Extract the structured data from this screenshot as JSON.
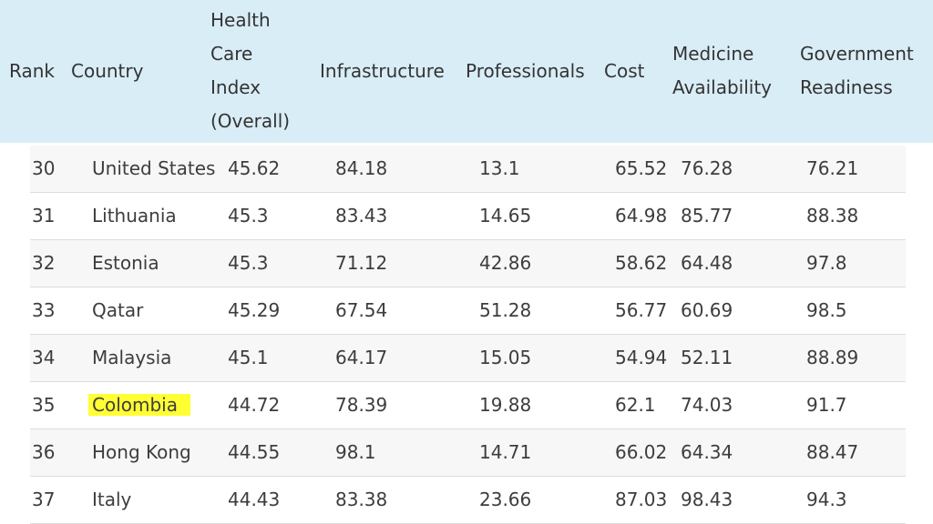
{
  "headers": {
    "rank": "Rank",
    "country": "Country",
    "index": "Health\nCare\nIndex\n(Overall)",
    "infrastructure": "Infrastructure",
    "professionals": "Professionals",
    "cost": "Cost",
    "medicine": "Medicine\nAvailability",
    "government": "Government\nReadiness"
  },
  "highlight_color": "#ffff33",
  "rows": [
    {
      "rank": "30",
      "country": "United States",
      "index": "45.62",
      "infrastructure": "84.18",
      "professionals": "13.1",
      "cost": "65.52",
      "medicine": "76.28",
      "government": "76.21"
    },
    {
      "rank": "31",
      "country": "Lithuania",
      "index": "45.3",
      "infrastructure": "83.43",
      "professionals": "14.65",
      "cost": "64.98",
      "medicine": "85.77",
      "government": "88.38"
    },
    {
      "rank": "32",
      "country": "Estonia",
      "index": "45.3",
      "infrastructure": "71.12",
      "professionals": "42.86",
      "cost": "58.62",
      "medicine": "64.48",
      "government": "97.8"
    },
    {
      "rank": "33",
      "country": "Qatar",
      "index": "45.29",
      "infrastructure": "67.54",
      "professionals": "51.28",
      "cost": "56.77",
      "medicine": "60.69",
      "government": "98.5"
    },
    {
      "rank": "34",
      "country": "Malaysia",
      "index": "45.1",
      "infrastructure": "64.17",
      "professionals": "15.05",
      "cost": "54.94",
      "medicine": "52.11",
      "government": "88.89"
    },
    {
      "rank": "35",
      "country": "Colombia",
      "index": "44.72",
      "infrastructure": "78.39",
      "professionals": "19.88",
      "cost": "62.1",
      "medicine": "74.03",
      "government": "91.7",
      "highlighted": true
    },
    {
      "rank": "36",
      "country": "Hong Kong",
      "index": "44.55",
      "infrastructure": "98.1",
      "professionals": "14.71",
      "cost": "66.02",
      "medicine": "64.34",
      "government": "88.47"
    },
    {
      "rank": "37",
      "country": "Italy",
      "index": "44.43",
      "infrastructure": "83.38",
      "professionals": "23.66",
      "cost": "87.03",
      "medicine": "98.43",
      "government": "94.3"
    }
  ]
}
